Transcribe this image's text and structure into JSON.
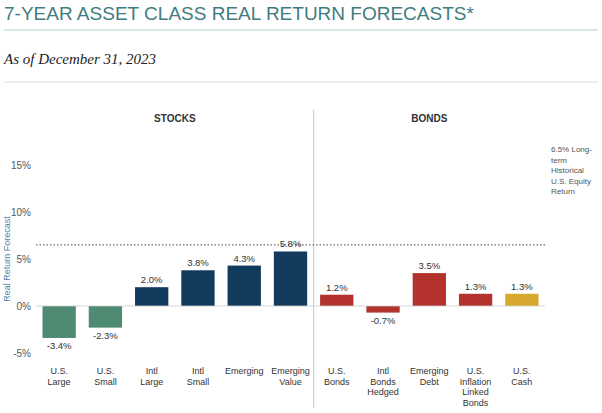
{
  "chart_data": {
    "type": "bar",
    "title": "7-YEAR ASSET CLASS REAL RETURN FORECASTS*",
    "subtitle": "As of December 31, 2023",
    "y_label": "Real Return Forecast",
    "categories": [
      "U.S. Large",
      "U.S. Small",
      "Intl Large",
      "Intl Small",
      "Emerging",
      "Emerging Value",
      "U.S. Bonds",
      "Intl Bonds Hedged",
      "Emerging Debt",
      "U.S. Inflation Linked Bonds",
      "U.S. Cash"
    ],
    "values": [
      -3.4,
      -2.3,
      2.0,
      3.8,
      4.3,
      5.8,
      1.2,
      -0.7,
      3.5,
      1.3,
      1.3
    ],
    "value_labels": [
      "-3.4%",
      "-2.3%",
      "2.0%",
      "3.8%",
      "4.3%",
      "5.8%",
      "1.2%",
      "-0.7%",
      "3.5%",
      "1.3%",
      "1.3%"
    ],
    "colors": [
      "#4f8b72",
      "#4f8b72",
      "#123a5c",
      "#123a5c",
      "#123a5c",
      "#123a5c",
      "#b3322d",
      "#b3322d",
      "#b3322d",
      "#b3322d",
      "#d6a92e"
    ],
    "sections": [
      {
        "label": "STOCKS",
        "count": 6
      },
      {
        "label": "BONDS",
        "count": 5
      }
    ],
    "reference_line": {
      "value": 6.5,
      "label": [
        "6.5% Long-",
        "term",
        "Historical",
        "U.S. Equity",
        "Return"
      ]
    },
    "ylim": [
      -5,
      15
    ],
    "yticks": [
      {
        "value": -5,
        "label": "-5%"
      },
      {
        "value": 0,
        "label": "0%"
      },
      {
        "value": 5,
        "label": "5%"
      },
      {
        "value": 10,
        "label": "10%"
      },
      {
        "value": 15,
        "label": "15%"
      }
    ],
    "grid": false,
    "data_labels": true
  }
}
